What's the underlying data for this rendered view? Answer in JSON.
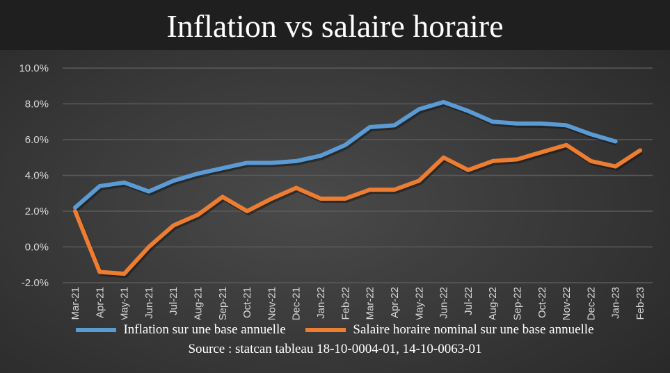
{
  "chart_data": {
    "type": "line",
    "title": "Inflation vs salaire horaire",
    "categories": [
      "Mar-21",
      "Apr-21",
      "May-21",
      "Jun-21",
      "Jul-21",
      "Aug-21",
      "Sep-21",
      "Oct-21",
      "Nov-21",
      "Dec-21",
      "Jan-22",
      "Feb-22",
      "Mar-22",
      "Apr-22",
      "May-22",
      "Jun-22",
      "Jul-22",
      "Aug-22",
      "Sep-22",
      "Oct-22",
      "Nov-22",
      "Dec-22",
      "Jan-23",
      "Feb-23"
    ],
    "yticks": [
      "10.0%",
      "8.0%",
      "6.0%",
      "4.0%",
      "2.0%",
      "0.0%",
      "-2.0%"
    ],
    "ylim": [
      -2,
      10
    ],
    "grid": true,
    "legend_position": "bottom",
    "series": [
      {
        "name": "Inflation sur une base annuelle",
        "color": "#5b9bd5",
        "values": [
          2.2,
          3.4,
          3.6,
          3.1,
          3.7,
          4.1,
          4.4,
          4.7,
          4.7,
          4.8,
          5.1,
          5.7,
          6.7,
          6.8,
          7.7,
          8.1,
          7.6,
          7.0,
          6.9,
          6.9,
          6.8,
          6.3,
          5.9,
          null
        ]
      },
      {
        "name": "Salaire horaire nominal sur une base annuelle",
        "color": "#ed7d31",
        "values": [
          2.0,
          -1.4,
          -1.5,
          0.0,
          1.2,
          1.8,
          2.8,
          2.0,
          2.7,
          3.3,
          2.7,
          2.7,
          3.2,
          3.2,
          3.7,
          5.0,
          4.3,
          4.8,
          4.9,
          5.3,
          5.7,
          4.8,
          4.5,
          5.4
        ]
      }
    ],
    "source": "Source : statcan tableau 18-10-0004-01, 14-10-0063-01"
  }
}
